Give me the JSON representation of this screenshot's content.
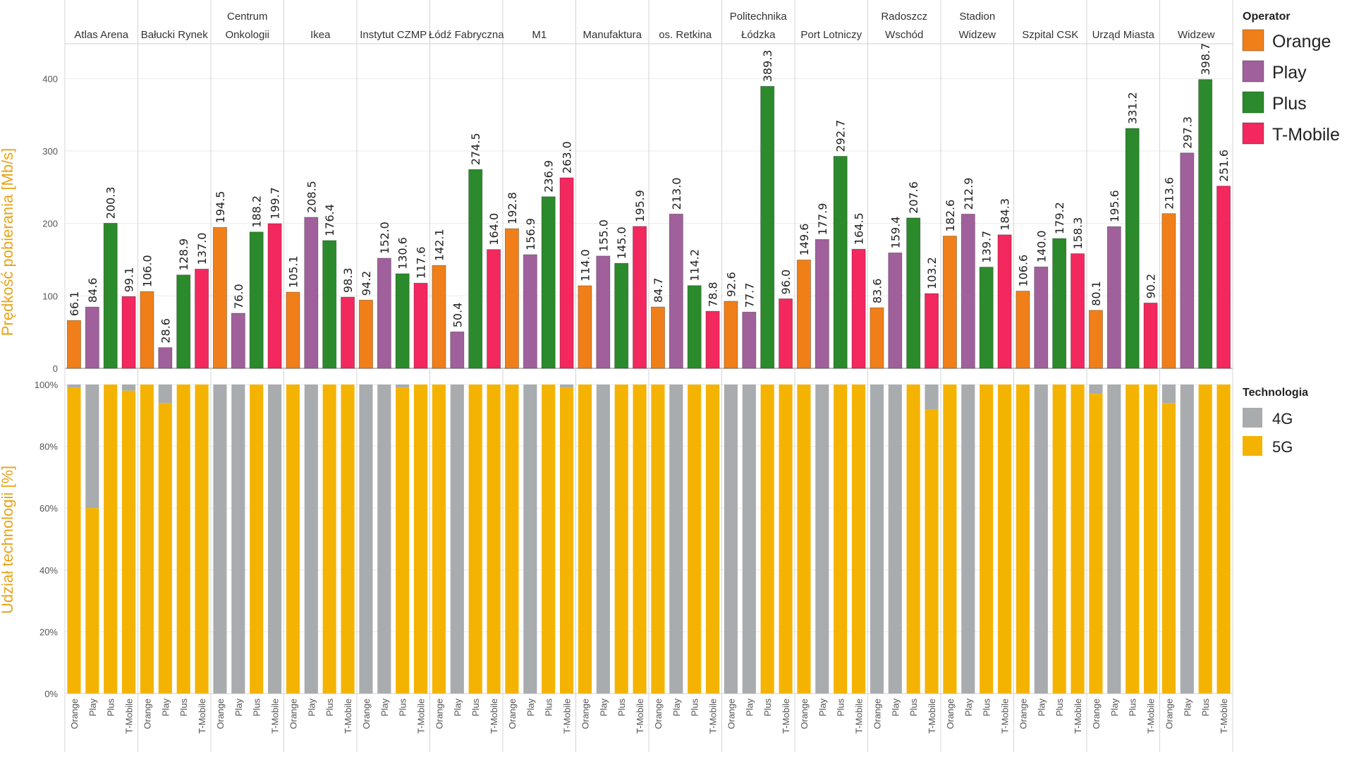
{
  "chart_data": {
    "type": "bar",
    "locations": [
      "Atlas Arena",
      "Bałucki Rynek",
      "Centrum Onkologii",
      "Ikea",
      "Instytut CZMP",
      "Łódź Fabryczna",
      "M1",
      "Manufaktura",
      "os. Retkina",
      "Politechnika Łódzka",
      "Port Lotniczy",
      "Radoszcz Wschód",
      "Stadion Widzew",
      "Szpital CSK",
      "Urząd Miasta",
      "Widzew"
    ],
    "location_lines": [
      [
        "Atlas Arena"
      ],
      [
        "Bałucki Rynek"
      ],
      [
        "Centrum",
        "Onkologii"
      ],
      [
        "Ikea"
      ],
      [
        "Instytut CZMP"
      ],
      [
        "Łódź Fabryczna"
      ],
      [
        "M1"
      ],
      [
        "Manufaktura"
      ],
      [
        "os. Retkina"
      ],
      [
        "Politechnika",
        "Łódzka"
      ],
      [
        "Port Lotniczy"
      ],
      [
        "Radoszcz",
        "Wschód"
      ],
      [
        "Stadion",
        "Widzew"
      ],
      [
        "Szpital CSK"
      ],
      [
        "Urząd Miasta"
      ],
      [
        "Widzew"
      ]
    ],
    "operators": [
      "Orange",
      "Play",
      "Plus",
      "T-Mobile"
    ],
    "colors": {
      "Orange": "#f07f1a",
      "Play": "#a0609c",
      "Plus": "#2b8a2b",
      "T-Mobile": "#f2285e",
      "4G": "#a9acae",
      "5G": "#f5b301"
    },
    "top": {
      "ylabel": "Prędkość pobierania [Mb/s]",
      "ylim": [
        0,
        450
      ],
      "yticks": [
        0,
        100,
        200,
        300,
        400
      ],
      "values": [
        [
          66.1,
          84.6,
          200.3,
          99.1
        ],
        [
          106.0,
          28.6,
          128.9,
          137.0
        ],
        [
          194.5,
          76.0,
          188.2,
          199.7
        ],
        [
          105.1,
          208.5,
          176.4,
          98.3
        ],
        [
          94.2,
          152.0,
          130.6,
          117.6
        ],
        [
          142.1,
          50.4,
          274.5,
          164.0
        ],
        [
          192.8,
          156.9,
          236.9,
          263.0
        ],
        [
          114.0,
          155.0,
          145.0,
          195.9
        ],
        [
          84.7,
          213.0,
          114.2,
          78.8
        ],
        [
          92.6,
          77.7,
          389.3,
          96.0
        ],
        [
          149.6,
          177.9,
          292.7,
          164.5
        ],
        [
          83.6,
          159.4,
          207.6,
          103.2
        ],
        [
          182.6,
          212.9,
          139.7,
          184.3
        ],
        [
          106.6,
          140.0,
          179.2,
          158.3
        ],
        [
          80.1,
          195.6,
          331.2,
          90.2
        ],
        [
          213.6,
          297.3,
          398.7,
          251.6
        ]
      ]
    },
    "bottom": {
      "ylabel": "Udział technologii [%]",
      "ylim": [
        0,
        100
      ],
      "ytick_labels": [
        "0%",
        "20%",
        "40%",
        "60%",
        "80%",
        "100%"
      ],
      "share_5g": [
        [
          99,
          60,
          100,
          98
        ],
        [
          100,
          94,
          100,
          100
        ],
        [
          0,
          0,
          100,
          0
        ],
        [
          100,
          0,
          100,
          100
        ],
        [
          0,
          0,
          99,
          100
        ],
        [
          100,
          0,
          100,
          100
        ],
        [
          100,
          0,
          100,
          99
        ],
        [
          100,
          0,
          100,
          100
        ],
        [
          100,
          0,
          100,
          100
        ],
        [
          0,
          0,
          100,
          100
        ],
        [
          100,
          0,
          100,
          100
        ],
        [
          0,
          0,
          100,
          92
        ],
        [
          100,
          0,
          100,
          100
        ],
        [
          100,
          0,
          100,
          100
        ],
        [
          97,
          0,
          100,
          100
        ],
        [
          94,
          0,
          100,
          100
        ]
      ]
    },
    "legend_operator": {
      "title": "Operator",
      "items": [
        "Orange",
        "Play",
        "Plus",
        "T-Mobile"
      ]
    },
    "legend_technology": {
      "title": "Technologia",
      "items": [
        "4G",
        "5G"
      ]
    }
  }
}
